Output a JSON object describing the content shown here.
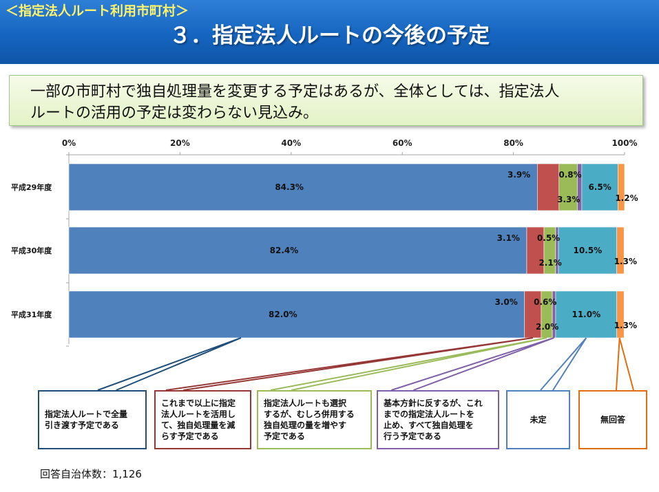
{
  "header": {
    "subtitle": "＜指定法人ルート利用市町村＞",
    "title": "３．指定法人ルートの今後の予定"
  },
  "summary": {
    "line1": "一部の市町村で独自処理量を変更する予定はあるが、全体としては、指定法人",
    "line2": "ルートの活用の予定は変わらない見込み。"
  },
  "chart_data": {
    "type": "bar",
    "orientation": "horizontal",
    "stacked": true,
    "categories": [
      "平成29年度",
      "平成30年度",
      "平成31年度"
    ],
    "series": [
      {
        "name": "指定法人ルートで全量引き渡す予定である",
        "color": "#4f81bd",
        "values": [
          84.3,
          82.4,
          82.0
        ],
        "labels": [
          "84.3%",
          "82.4%",
          "82.0%"
        ]
      },
      {
        "name": "これまで以上に指定法人ルートを活用して、独自処理量を減らす予定である",
        "color": "#c0504d",
        "values": [
          3.9,
          3.1,
          3.0
        ],
        "labels": [
          "3.9%",
          "3.1%",
          "3.0%"
        ]
      },
      {
        "name": "指定法人ルートも選択するが、むしろ併用する独自処理の量を増やす予定である",
        "color": "#9bbb59",
        "values": [
          3.3,
          2.1,
          2.0
        ],
        "labels": [
          "3.3%",
          "2.1%",
          "2.0%"
        ]
      },
      {
        "name": "基本方針に反するが、これまでの指定法人ルートを止め、すべて独自処理を行う予定である",
        "color": "#8064a2",
        "values": [
          0.8,
          0.5,
          0.6
        ],
        "labels": [
          "0.8%",
          "0.5%",
          "0.6%"
        ]
      },
      {
        "name": "未定",
        "color": "#4bacc6",
        "values": [
          6.5,
          10.5,
          11.0
        ],
        "labels": [
          "6.5%",
          "10.5%",
          "11.0%"
        ]
      },
      {
        "name": "無回答",
        "color": "#f79646",
        "values": [
          1.2,
          1.3,
          1.3
        ],
        "labels": [
          "1.2%",
          "1.3%",
          "1.3%"
        ]
      }
    ],
    "xaxis": {
      "ticks": [
        "0%",
        "20%",
        "40%",
        "60%",
        "80%",
        "100%"
      ],
      "range": [
        0,
        100
      ],
      "position": "top"
    },
    "grid": false
  },
  "callouts": [
    {
      "text": "指定法人ルートで全量\n引き渡す予定である",
      "color": "#1f4e79"
    },
    {
      "text": "これまで以上に指定\n法人ルートを活用し\nて、独自処理量を減\nらす予定である",
      "color": "#953735"
    },
    {
      "text": "指定法人ルートも選択\nするが、むしろ併用する\n独自処理の量を増やす\n予定である",
      "color": "#9bbb59"
    },
    {
      "text": "基本方針に反するが、これ\nまでの指定法人ルートを\n止め、すべて独自処理を\n行う予定である",
      "color": "#7f5fa8"
    },
    {
      "text": "未定",
      "color": "#4f81bd"
    },
    {
      "text": "無回答",
      "color": "#e46c0a"
    }
  ],
  "footer": "回答自治体数：1,126"
}
